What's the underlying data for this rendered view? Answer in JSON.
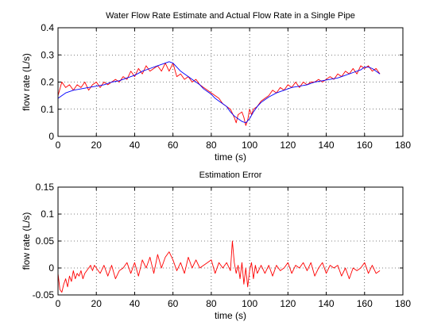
{
  "chart_data": [
    {
      "type": "line",
      "title": "Water Flow Rate Estimate and Actual Flow Rate in a Single Pipe",
      "xlabel": "time (s)",
      "ylabel": "flow rate (L/s)",
      "xlim": [
        0,
        180
      ],
      "ylim": [
        0,
        0.4
      ],
      "xticks": [
        "0",
        "20",
        "40",
        "60",
        "80",
        "100",
        "120",
        "140",
        "160",
        "180"
      ],
      "yticks": [
        "0",
        "0.1",
        "0.2",
        "0.3",
        "0.4"
      ],
      "grid": true,
      "colors": {
        "estimate": "#ff0000",
        "actual": "#0000ff"
      },
      "series": [
        {
          "color": "#ff0000",
          "x": [
            0,
            2,
            4,
            6,
            8,
            10,
            12,
            14,
            16,
            18,
            20,
            22,
            24,
            26,
            28,
            30,
            32,
            34,
            36,
            38,
            40,
            42,
            44,
            46,
            48,
            50,
            52,
            54,
            56,
            58,
            60,
            62,
            64,
            66,
            68,
            70,
            72,
            74,
            76,
            78,
            80,
            82,
            84,
            86,
            88,
            90,
            92,
            93,
            94,
            96,
            97,
            98,
            99,
            100,
            101,
            102,
            104,
            106,
            108,
            110,
            112,
            114,
            116,
            118,
            120,
            122,
            124,
            126,
            128,
            130,
            132,
            134,
            136,
            138,
            140,
            142,
            144,
            146,
            148,
            150,
            152,
            154,
            156,
            158,
            160,
            162,
            164,
            166,
            168
          ],
          "values": [
            0.15,
            0.2,
            0.18,
            0.19,
            0.17,
            0.19,
            0.18,
            0.2,
            0.17,
            0.19,
            0.2,
            0.18,
            0.2,
            0.19,
            0.2,
            0.21,
            0.2,
            0.22,
            0.21,
            0.24,
            0.22,
            0.25,
            0.23,
            0.26,
            0.24,
            0.25,
            0.26,
            0.24,
            0.27,
            0.24,
            0.27,
            0.22,
            0.23,
            0.21,
            0.22,
            0.2,
            0.21,
            0.19,
            0.18,
            0.17,
            0.16,
            0.15,
            0.14,
            0.12,
            0.11,
            0.1,
            0.07,
            0.05,
            0.08,
            0.09,
            0.07,
            0.04,
            0.06,
            0.1,
            0.08,
            0.1,
            0.11,
            0.13,
            0.14,
            0.15,
            0.17,
            0.16,
            0.18,
            0.17,
            0.19,
            0.18,
            0.2,
            0.18,
            0.2,
            0.19,
            0.2,
            0.2,
            0.21,
            0.2,
            0.21,
            0.22,
            0.21,
            0.23,
            0.22,
            0.24,
            0.23,
            0.25,
            0.23,
            0.26,
            0.25,
            0.26,
            0.24,
            0.25,
            0.23
          ]
        },
        {
          "color": "#0000ff",
          "x": [
            0,
            4,
            8,
            12,
            16,
            20,
            24,
            28,
            32,
            36,
            40,
            44,
            48,
            52,
            56,
            58,
            60,
            62,
            64,
            66,
            68,
            70,
            72,
            74,
            76,
            78,
            80,
            82,
            84,
            86,
            88,
            90,
            92,
            94,
            96,
            98,
            100,
            102,
            104,
            106,
            108,
            110,
            114,
            118,
            122,
            126,
            130,
            134,
            138,
            142,
            146,
            150,
            154,
            158,
            160,
            162,
            164,
            166,
            168
          ],
          "values": [
            0.14,
            0.16,
            0.17,
            0.175,
            0.18,
            0.185,
            0.19,
            0.2,
            0.205,
            0.215,
            0.225,
            0.24,
            0.25,
            0.26,
            0.27,
            0.275,
            0.27,
            0.255,
            0.24,
            0.23,
            0.22,
            0.21,
            0.2,
            0.19,
            0.175,
            0.165,
            0.155,
            0.14,
            0.13,
            0.12,
            0.11,
            0.09,
            0.075,
            0.065,
            0.055,
            0.05,
            0.065,
            0.09,
            0.11,
            0.125,
            0.135,
            0.145,
            0.16,
            0.17,
            0.18,
            0.185,
            0.19,
            0.2,
            0.205,
            0.21,
            0.215,
            0.225,
            0.235,
            0.245,
            0.255,
            0.255,
            0.25,
            0.24,
            0.23
          ]
        }
      ]
    },
    {
      "type": "line",
      "title": "Estimation Error",
      "xlabel": "time (s)",
      "ylabel": "flow rate (L/s)",
      "xlim": [
        0,
        180
      ],
      "ylim": [
        -0.05,
        0.15
      ],
      "xticks": [
        "0",
        "20",
        "40",
        "60",
        "80",
        "100",
        "120",
        "140",
        "160",
        "180"
      ],
      "yticks": [
        "-0.05",
        "0",
        "0.05",
        "0.1",
        "0.15"
      ],
      "grid": true,
      "colors": {
        "error": "#ff0000"
      },
      "series": [
        {
          "color": "#ff0000",
          "x": [
            0,
            1,
            2,
            3,
            4,
            5,
            6,
            7,
            8,
            9,
            10,
            11,
            12,
            13,
            14,
            15,
            16,
            17,
            18,
            19,
            20,
            22,
            24,
            26,
            28,
            30,
            32,
            34,
            36,
            38,
            40,
            42,
            44,
            46,
            48,
            50,
            52,
            54,
            56,
            58,
            60,
            62,
            64,
            66,
            68,
            70,
            72,
            74,
            76,
            78,
            80,
            82,
            84,
            86,
            88,
            90,
            91,
            92,
            93,
            94,
            95,
            96,
            97,
            98,
            99,
            100,
            101,
            102,
            103,
            104,
            106,
            108,
            110,
            112,
            114,
            116,
            118,
            120,
            122,
            124,
            126,
            128,
            130,
            132,
            134,
            136,
            138,
            140,
            142,
            144,
            146,
            148,
            150,
            152,
            154,
            156,
            158,
            160,
            162,
            164,
            166,
            168
          ],
          "values": [
            -0.01,
            -0.04,
            -0.045,
            -0.03,
            -0.02,
            -0.035,
            -0.015,
            -0.025,
            -0.005,
            -0.02,
            -0.01,
            -0.015,
            -0.005,
            -0.02,
            -0.01,
            -0.005,
            0.0,
            0.005,
            -0.005,
            0.005,
            0.0,
            -0.01,
            0.005,
            -0.015,
            0.005,
            -0.02,
            -0.005,
            0.0,
            0.01,
            -0.01,
            0.01,
            -0.015,
            0.015,
            0.0,
            0.02,
            -0.01,
            0.025,
            0.0,
            0.02,
            0.03,
            0.015,
            -0.005,
            0.01,
            -0.01,
            0.02,
            0.0,
            0.015,
            0.0,
            0.005,
            0.01,
            0.015,
            -0.01,
            0.01,
            0.0,
            0.01,
            -0.005,
            0.05,
            0.01,
            -0.01,
            0.005,
            -0.02,
            0.01,
            -0.03,
            0.0,
            -0.035,
            -0.005,
            0.01,
            -0.02,
            0.005,
            -0.01,
            0.005,
            -0.01,
            0.005,
            -0.015,
            0.005,
            -0.005,
            0.0,
            0.01,
            -0.01,
            0.005,
            0.0,
            0.01,
            -0.005,
            0.01,
            -0.015,
            0.0,
            0.01,
            -0.01,
            0.005,
            0.0,
            0.005,
            -0.015,
            0.0,
            -0.02,
            0.0,
            -0.005,
            0.0,
            0.01,
            -0.01,
            0.005,
            -0.01,
            -0.005
          ]
        }
      ]
    }
  ]
}
